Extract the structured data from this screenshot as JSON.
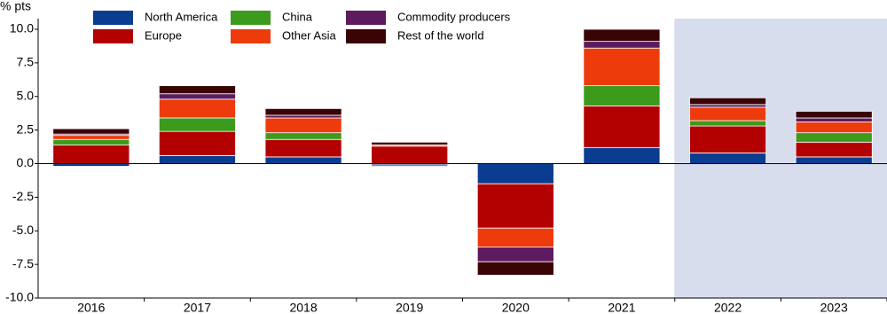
{
  "chart_data": {
    "type": "stacked_bar",
    "y_label": "% pts",
    "categories": [
      "2016",
      "2017",
      "2018",
      "2019",
      "2020",
      "2021",
      "2022",
      "2023"
    ],
    "shaded": [
      false,
      false,
      false,
      false,
      false,
      false,
      true,
      true
    ],
    "shade_color": "#d8ddee",
    "series": [
      {
        "name": "North America",
        "color": "#0a3d8f",
        "values": [
          -0.2,
          0.6,
          0.5,
          -0.1,
          -1.5,
          1.2,
          0.8,
          0.5
        ]
      },
      {
        "name": "Europe",
        "color": "#b30000",
        "values": [
          1.4,
          1.8,
          1.3,
          1.3,
          -3.3,
          3.1,
          2.0,
          1.1
        ]
      },
      {
        "name": "China",
        "color": "#3c9a1c",
        "values": [
          0.4,
          1.0,
          0.5,
          0.0,
          0.0,
          1.5,
          0.4,
          0.7
        ]
      },
      {
        "name": "Other Asia",
        "color": "#ee3b0c",
        "values": [
          0.3,
          1.4,
          1.1,
          0.1,
          -1.4,
          2.8,
          1.0,
          0.8
        ]
      },
      {
        "name": "Commodity producers",
        "color": "#5c1b5f",
        "values": [
          0.1,
          0.4,
          0.2,
          -0.1,
          -1.1,
          0.5,
          0.2,
          0.3
        ]
      },
      {
        "name": "Rest of the world",
        "color": "#3a0404",
        "values": [
          0.4,
          0.6,
          0.5,
          0.2,
          -1.0,
          0.9,
          0.5,
          0.5
        ]
      }
    ],
    "ylim": [
      -10,
      10
    ],
    "yticks": [
      {
        "value": 10,
        "label": "10.0"
      },
      {
        "value": 7.5,
        "label": "7.5"
      },
      {
        "value": 5,
        "label": "5.0"
      },
      {
        "value": 2.5,
        "label": "2.5"
      },
      {
        "value": 0,
        "label": "0.0"
      },
      {
        "value": -2.5,
        "label": "-2.5"
      },
      {
        "value": -5,
        "label": "-5.0"
      },
      {
        "value": -7.5,
        "label": "-7.5"
      },
      {
        "value": -10,
        "label": "-10.0"
      }
    ]
  }
}
